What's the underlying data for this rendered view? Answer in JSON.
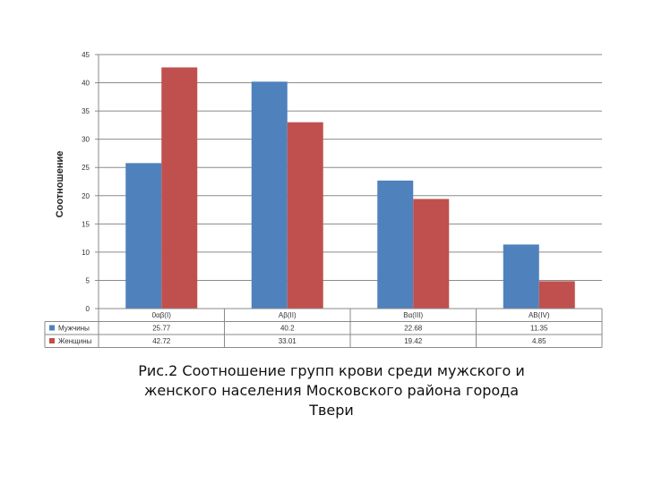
{
  "chart_data": {
    "type": "bar",
    "ylabel": "Соотношение",
    "xlabel": "",
    "ylim": [
      0,
      45
    ],
    "yticks": [
      0,
      5,
      10,
      15,
      20,
      25,
      30,
      35,
      40,
      45
    ],
    "grid": true,
    "legend": "data-table-left",
    "categories": [
      "0αβ(I)",
      "Aβ(II)",
      "Bα(III)",
      "AB(IV)"
    ],
    "series": [
      {
        "name": "Мужчины",
        "color": "#4F81BD",
        "values": [
          25.77,
          40.2,
          22.68,
          11.35
        ],
        "labels": [
          "25.77",
          "40.2",
          "22.68",
          "11.35"
        ]
      },
      {
        "name": "Женщины",
        "color": "#C0504D",
        "values": [
          42.72,
          33.01,
          19.42,
          4.85
        ],
        "labels": [
          "42.72",
          "33.01",
          "19.42",
          "4.85"
        ]
      }
    ]
  },
  "caption": {
    "line1": "Рис.2 Соотношение групп крови среди мужского и",
    "line2": "женского населения Московского района города",
    "line3": "Твери"
  }
}
